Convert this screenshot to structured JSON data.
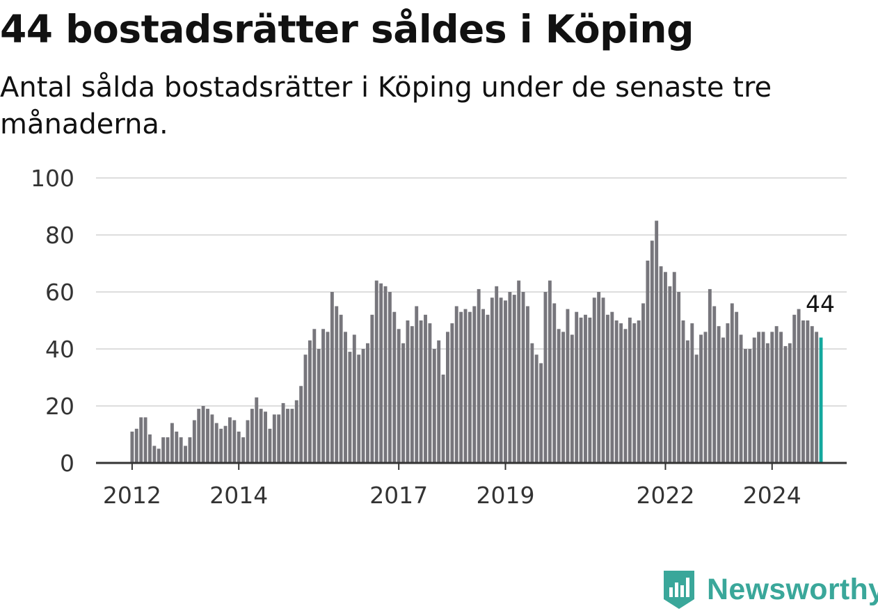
{
  "title": "44 bostadsrätter såldes i Köping",
  "subtitle": "Antal sålda bostadsrätter i Köping under de senaste tre månaderna.",
  "brand": {
    "name": "Newsworthy",
    "color": "#3aa79a",
    "icon": "newsworthy-logo-icon"
  },
  "chart_data": {
    "type": "bar",
    "title": "44 bostadsrätter såldes i Köping",
    "xlabel": "",
    "ylabel": "",
    "ylim": [
      0,
      100
    ],
    "yticks": [
      0,
      20,
      40,
      60,
      80,
      100
    ],
    "xticks": [
      "2012",
      "2014",
      "2017",
      "2019",
      "2022",
      "2024"
    ],
    "x_start": "2012-01",
    "bar_color": "#77767c",
    "highlight_color": "#13a89e",
    "highlight_label": "44",
    "grid": true,
    "values": [
      11,
      12,
      16,
      16,
      10,
      6,
      5,
      9,
      9,
      14,
      11,
      9,
      6,
      9,
      15,
      19,
      20,
      19,
      17,
      14,
      12,
      13,
      16,
      15,
      11,
      9,
      15,
      19,
      23,
      19,
      18,
      12,
      17,
      17,
      21,
      19,
      19,
      22,
      27,
      38,
      43,
      47,
      40,
      47,
      46,
      60,
      55,
      52,
      46,
      39,
      45,
      38,
      40,
      42,
      52,
      64,
      63,
      62,
      60,
      53,
      47,
      42,
      50,
      48,
      55,
      50,
      52,
      49,
      40,
      43,
      31,
      46,
      49,
      55,
      53,
      54,
      53,
      55,
      61,
      54,
      52,
      58,
      62,
      58,
      57,
      60,
      59,
      64,
      60,
      55,
      42,
      38,
      35,
      60,
      64,
      56,
      47,
      46,
      54,
      45,
      53,
      51,
      52,
      51,
      58,
      60,
      58,
      52,
      53,
      50,
      49,
      47,
      51,
      49,
      50,
      56,
      71,
      78,
      85,
      69,
      67,
      62,
      67,
      60,
      50,
      43,
      49,
      38,
      45,
      46,
      61,
      55,
      48,
      44,
      49,
      56,
      53,
      45,
      40,
      40,
      44,
      46,
      46,
      42,
      46,
      48,
      46,
      41,
      42,
      52,
      54,
      50,
      50,
      48,
      46,
      44
    ]
  }
}
